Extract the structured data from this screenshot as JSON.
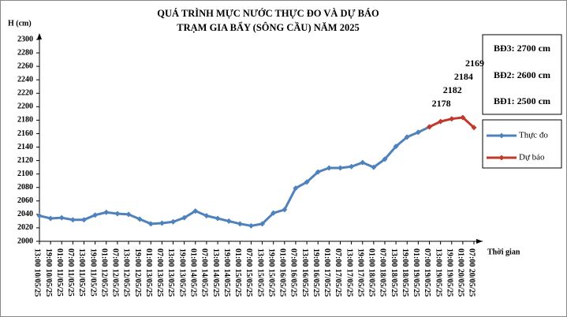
{
  "chart_data": {
    "type": "line",
    "title": "QUÁ TRÌNH MỰC NƯỚC THỰC ĐO VÀ DỰ BÁO",
    "subtitle": "TRẠM GIA BẨY (SÔNG CẦU) NĂM 2025",
    "y_label": "H (cm)",
    "x_label": "Thời gian",
    "alert_levels": [
      "BĐ3: 2700 cm",
      "BĐ2: 2600 cm",
      "BĐ1: 2500 cm"
    ],
    "categories": [
      "13:00 10/05/25",
      "19:00 10/05/25",
      "01:00 11/05/25",
      "07:00 11/05/25",
      "13:00 11/05/25",
      "19:00 11/05/25",
      "01:00 12/05/25",
      "07:00 12/05/25",
      "13:00 12/05/25",
      "19:00 12/05/25",
      "01:00 13/05/25",
      "07:00 13/05/25",
      "13:00 13/05/25",
      "19:00 13/05/25",
      "01:00 14/05/25",
      "07:00 14/05/25",
      "13:00 14/05/25",
      "19:00 14/05/25",
      "01:00 15/05/25",
      "07:00 15/05/25",
      "13:00 15/05/25",
      "19:00 15/05/25",
      "01:00 16/05/25",
      "07:00 16/05/25",
      "13:00 16/05/25",
      "19:00 16/05/25",
      "01:00 17/05/25",
      "07:00 17/05/25",
      "13:00 17/05/25",
      "19:00 17/05/25",
      "01:00 18/05/25",
      "07:00 18/05/25",
      "13:00 18/05/25",
      "19:00 18/05/25",
      "01:00 19/05/25",
      "07:00 19/05/25",
      "13:00 19/05/25",
      "19:00 19/05/25",
      "01:00 20/05/25",
      "07:00 20/05/25"
    ],
    "series": [
      {
        "name": "Thực đo",
        "color": "#4f81bd",
        "values": [
          2038,
          2034,
          2035,
          2032,
          2032,
          2039,
          2043,
          2041,
          2040,
          2033,
          2026,
          2027,
          2029,
          2035,
          2045,
          2038,
          2034,
          2030,
          2026,
          2023,
          2026,
          2042,
          2047,
          2079,
          2088,
          2103,
          2109,
          2109,
          2111,
          2117,
          2110,
          2122,
          2141,
          2155,
          2162,
          2170,
          null,
          null,
          null,
          null
        ]
      },
      {
        "name": "Dự báo",
        "color": "#c0392b",
        "values": [
          null,
          null,
          null,
          null,
          null,
          null,
          null,
          null,
          null,
          null,
          null,
          null,
          null,
          null,
          null,
          null,
          null,
          null,
          null,
          null,
          null,
          null,
          null,
          null,
          null,
          null,
          null,
          null,
          null,
          null,
          null,
          null,
          null,
          null,
          null,
          2170,
          2178,
          2182,
          2184,
          2169
        ]
      }
    ],
    "ylim": [
      2000,
      2300
    ],
    "yticks": [
      2000,
      2020,
      2040,
      2060,
      2080,
      2100,
      2120,
      2140,
      2160,
      2180,
      2200,
      2220,
      2240,
      2260,
      2280,
      2300
    ],
    "grid": false
  }
}
